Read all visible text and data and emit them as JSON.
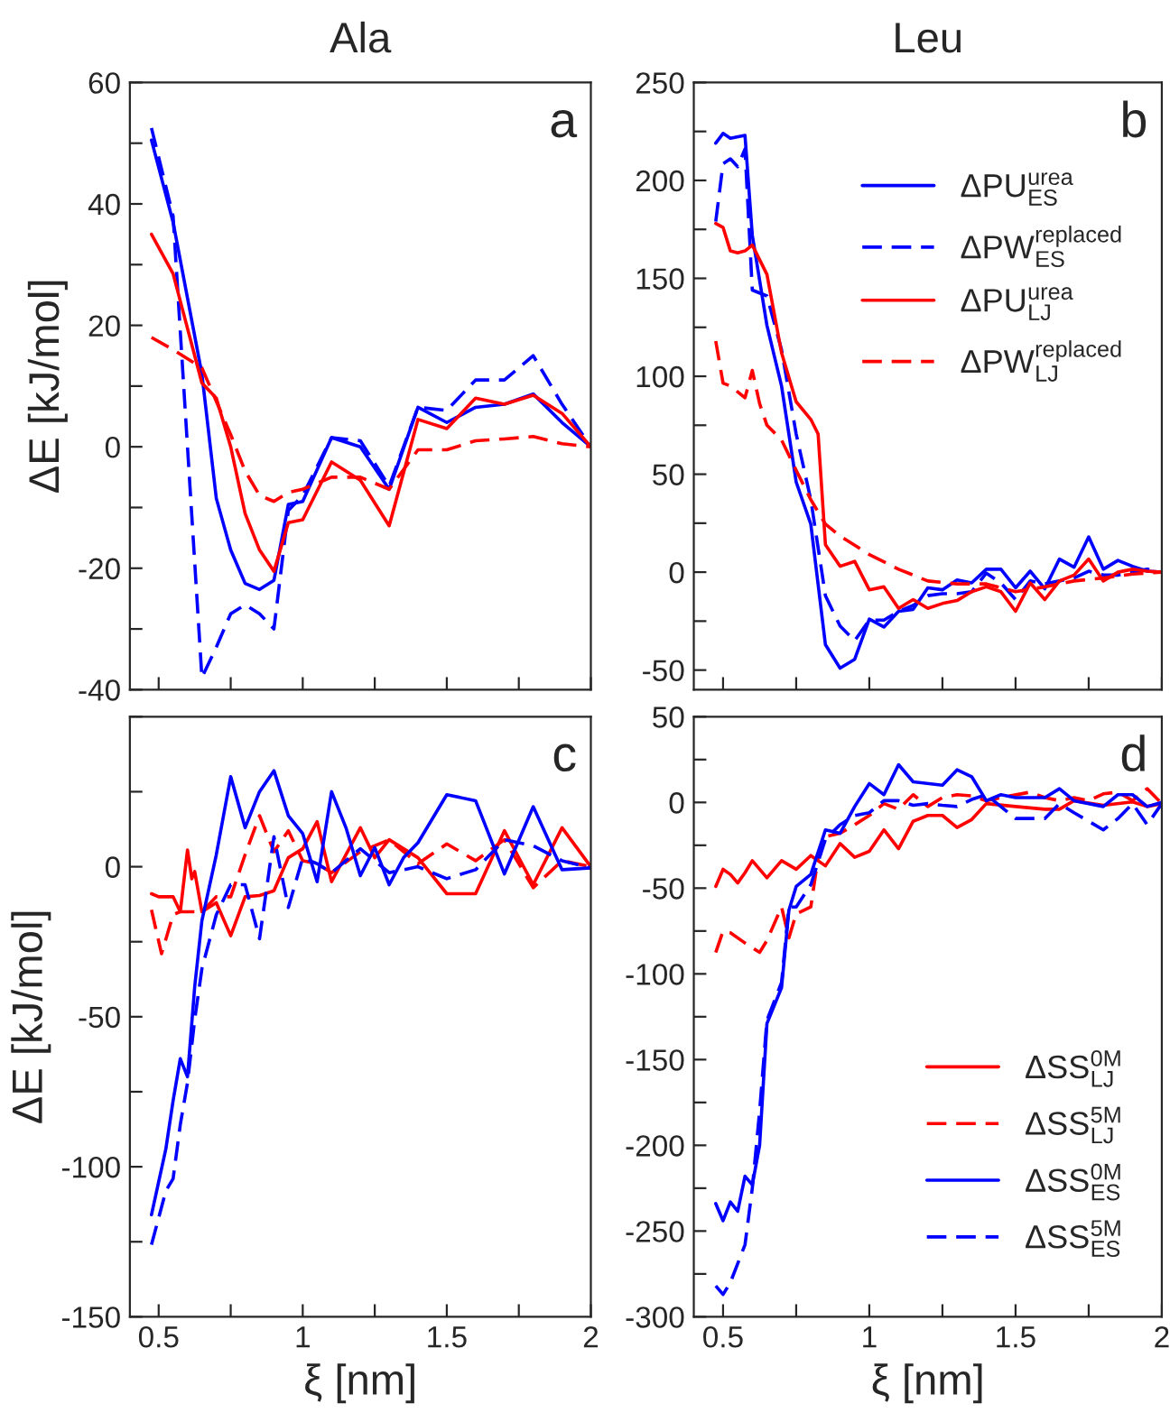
{
  "chart_data": [
    {
      "type": "line",
      "title": "Ala",
      "ylabel": "ΔE [kJ/mol]",
      "annotations": [
        "a"
      ],
      "tick_labels": "y",
      "grid": false,
      "legend": false,
      "xlim": [
        0.4,
        2
      ],
      "xticks": [
        0.5,
        {
          "value": 0.75,
          "label": null
        },
        1,
        {
          "value": 1.25,
          "label": null
        },
        1.5,
        {
          "value": 1.75,
          "label": null
        },
        2
      ],
      "ylim": [
        -40,
        60
      ],
      "yticks": [
        -40,
        {
          "value": -30,
          "label": null
        },
        -20,
        {
          "value": -10,
          "label": null
        },
        0,
        {
          "value": 10,
          "label": null
        },
        20,
        {
          "value": 30,
          "label": null
        },
        40,
        {
          "value": 50,
          "label": null
        },
        60
      ],
      "series": [
        {
          "color": "#0000ff",
          "line_style": "solid",
          "x": [
            0.475,
            0.55,
            0.65,
            0.7,
            0.75,
            0.8,
            0.85,
            0.9,
            0.95,
            1.0,
            1.1,
            1.2,
            1.3,
            1.4,
            1.5,
            1.6,
            1.7,
            1.8,
            1.9,
            2.0
          ],
          "values": [
            50.5,
            37,
            12,
            -8.5,
            -17,
            -22.5,
            -23.5,
            -22,
            -9.5,
            -9,
            1.5,
            0,
            -7,
            6.5,
            4,
            6.5,
            7,
            8.7,
            4,
            0
          ]
        },
        {
          "color": "#0000ff",
          "line_style": "dashed",
          "x": [
            0.475,
            0.55,
            0.6,
            0.65,
            0.7,
            0.75,
            0.8,
            0.85,
            0.9,
            0.95,
            1.0,
            1.1,
            1.2,
            1.3,
            1.4,
            1.5,
            1.6,
            1.7,
            1.8,
            1.9,
            2.0
          ],
          "values": [
            52.5,
            38,
            0,
            -38,
            -33,
            -27.5,
            -26,
            -27.5,
            -30,
            -10.5,
            -8,
            1.5,
            1,
            -6.5,
            6.5,
            6,
            11,
            11,
            15,
            7,
            0
          ]
        },
        {
          "color": "#ff0000",
          "line_style": "solid",
          "x": [
            0.475,
            0.55,
            0.65,
            0.7,
            0.75,
            0.8,
            0.85,
            0.9,
            0.95,
            1.0,
            1.1,
            1.2,
            1.3,
            1.4,
            1.5,
            1.6,
            1.7,
            1.8,
            1.9,
            2.0
          ],
          "values": [
            35,
            28.5,
            10.5,
            8,
            0,
            -11,
            -17,
            -20.5,
            -12.5,
            -12,
            -2.5,
            -5.5,
            -13,
            4.5,
            3,
            8,
            7,
            8.5,
            5.5,
            0
          ]
        },
        {
          "color": "#ff0000",
          "line_style": "dashed",
          "x": [
            0.475,
            0.55,
            0.65,
            0.7,
            0.75,
            0.8,
            0.85,
            0.9,
            0.95,
            1.0,
            1.1,
            1.2,
            1.3,
            1.4,
            1.5,
            1.6,
            1.7,
            1.8,
            1.9,
            2.0
          ],
          "values": [
            18,
            16,
            13,
            7.5,
            2,
            -4,
            -8,
            -9,
            -7.5,
            -7,
            -5,
            -5,
            -7,
            -0.5,
            -0.5,
            1,
            1.3,
            1.7,
            0.5,
            0
          ]
        }
      ]
    },
    {
      "type": "line",
      "title": "Leu",
      "annotations": [
        "b"
      ],
      "tick_labels": "y",
      "grid": false,
      "legend": "top right",
      "xlim": [
        0.4,
        2
      ],
      "xticks": [
        0.5,
        {
          "value": 0.75,
          "label": null
        },
        1,
        {
          "value": 1.25,
          "label": null
        },
        1.5,
        {
          "value": 1.75,
          "label": null
        },
        2
      ],
      "ylim": [
        -60,
        250
      ],
      "yticks": [
        -50,
        {
          "value": -25,
          "label": null
        },
        0,
        {
          "value": 25,
          "label": null
        },
        50,
        {
          "value": 75,
          "label": null
        },
        100,
        {
          "value": 125,
          "label": null
        },
        150,
        {
          "value": 175,
          "label": null
        },
        200,
        {
          "value": 225,
          "label": null
        },
        250
      ],
      "series": [
        {
          "name": "ΔPU$^{urea}$$_{ES}$",
          "color": "#0000ff",
          "line_style": "solid",
          "x": [
            0.475,
            0.5,
            0.525,
            0.575,
            0.6,
            0.65,
            0.7,
            0.75,
            0.8,
            0.85,
            0.9,
            0.95,
            1.0,
            1.05,
            1.1,
            1.15,
            1.2,
            1.25,
            1.3,
            1.35,
            1.4,
            1.45,
            1.5,
            1.55,
            1.6,
            1.65,
            1.7,
            1.75,
            1.8,
            1.85,
            1.9,
            1.95,
            2.0
          ],
          "values": [
            219,
            224,
            221.5,
            223,
            172,
            126,
            95,
            46,
            24.5,
            -37,
            -49,
            -44.5,
            -24,
            -28,
            -20,
            -19,
            -8,
            -9,
            -4,
            -5.5,
            1.5,
            1.5,
            -8,
            0.5,
            -8.5,
            6.7,
            2.5,
            18,
            1.5,
            6,
            3,
            0.5,
            0
          ]
        },
        {
          "name": "ΔPW$^{replaced}$$_{ES}$",
          "color": "#0000ff",
          "line_style": "dashed",
          "x": [
            0.475,
            0.5,
            0.525,
            0.55,
            0.575,
            0.6,
            0.65,
            0.7,
            0.75,
            0.8,
            0.85,
            0.9,
            0.95,
            1.0,
            1.05,
            1.1,
            1.15,
            1.2,
            1.25,
            1.3,
            1.35,
            1.4,
            1.45,
            1.5,
            1.55,
            1.6,
            1.65,
            1.7,
            1.75,
            1.8,
            1.85,
            1.9,
            1.95,
            2.0
          ],
          "values": [
            179,
            208.5,
            211,
            207,
            216,
            144,
            141,
            113.5,
            70.5,
            37,
            -12,
            -27.5,
            -35,
            -24.5,
            -24.5,
            -20,
            -17,
            -12,
            -11,
            -11,
            -10,
            -0.5,
            -5.5,
            -14,
            -4.5,
            -6,
            -4.5,
            -3,
            0.5,
            -1.5,
            -1.5,
            0,
            1.5,
            0
          ]
        },
        {
          "name": "ΔPU$^{urea}$$_{LJ}$",
          "color": "#ff0000",
          "line_style": "solid",
          "x": [
            0.475,
            0.5,
            0.525,
            0.55,
            0.575,
            0.6,
            0.65,
            0.7,
            0.75,
            0.8,
            0.825,
            0.85,
            0.9,
            0.95,
            1.0,
            1.05,
            1.1,
            1.15,
            1.2,
            1.25,
            1.3,
            1.35,
            1.4,
            1.45,
            1.5,
            1.55,
            1.6,
            1.65,
            1.7,
            1.75,
            1.8,
            1.85,
            1.9,
            1.95,
            2.0
          ],
          "values": [
            178,
            176,
            164,
            163,
            164,
            167,
            152,
            112,
            87,
            78,
            70.5,
            14,
            3,
            5.5,
            -9,
            -7.5,
            -18.5,
            -14,
            -18.5,
            -16,
            -14.5,
            -10,
            -7.5,
            -10,
            -20,
            -5.5,
            -14,
            -4.5,
            -1.5,
            6.7,
            -4.5,
            0,
            1.5,
            0.5,
            0
          ]
        },
        {
          "name": "ΔPW$^{replaced}$$_{LJ}$",
          "color": "#ff0000",
          "line_style": "dashed",
          "x": [
            0.475,
            0.5,
            0.525,
            0.575,
            0.6,
            0.625,
            0.65,
            0.7,
            0.75,
            0.8,
            0.85,
            0.9,
            1.0,
            1.1,
            1.2,
            1.3,
            1.4,
            1.5,
            1.6,
            1.7,
            1.8,
            1.9,
            2.0
          ],
          "values": [
            118,
            96.5,
            95,
            89,
            103,
            86,
            75,
            67.5,
            52,
            37,
            24.5,
            18.5,
            9,
            1.5,
            -4.5,
            -6,
            -6,
            -10,
            -7.5,
            -4.5,
            -3,
            -1,
            0
          ]
        }
      ]
    },
    {
      "type": "line",
      "ylabel": "ΔE [kJ/mol]",
      "xlabel": "ξ [nm]",
      "annotations": [
        "c"
      ],
      "grid": false,
      "legend": false,
      "xlim": [
        0.4,
        2
      ],
      "xticks": [
        0.5,
        {
          "value": 0.75,
          "label": null
        },
        1,
        {
          "value": 1.25,
          "label": null
        },
        1.5,
        {
          "value": 1.75,
          "label": null
        },
        2
      ],
      "ylim": [
        -150,
        50
      ],
      "yticks": [
        -150,
        {
          "value": -125,
          "label": null
        },
        -100,
        {
          "value": -75,
          "label": null
        },
        -50,
        {
          "value": -25,
          "label": null
        },
        0,
        {
          "value": 25,
          "label": null
        },
        {
          "value": 50,
          "label": null
        }
      ],
      "series": [
        {
          "color": "#ff0000",
          "line_style": "solid",
          "x": [
            0.475,
            0.5,
            0.55,
            0.575,
            0.6,
            0.615,
            0.625,
            0.65,
            0.7,
            0.75,
            0.8,
            0.85,
            0.9,
            0.95,
            1.0,
            1.05,
            1.1,
            1.2,
            1.25,
            1.3,
            1.4,
            1.5,
            1.6,
            1.7,
            1.8,
            1.9,
            2.0
          ],
          "values": [
            -9,
            -10,
            -10,
            -15,
            5.6,
            -4,
            -1.6,
            -15,
            -12,
            -23,
            -10,
            -9.6,
            -8,
            3,
            6,
            15,
            -5,
            13,
            3,
            9,
            3,
            -9,
            -9,
            12,
            -6,
            13,
            0
          ]
        },
        {
          "color": "#ff0000",
          "line_style": "dashed",
          "x": [
            0.475,
            0.51,
            0.55,
            0.575,
            0.6,
            0.65,
            0.7,
            0.75,
            0.8,
            0.85,
            0.9,
            0.95,
            1.0,
            1.05,
            1.1,
            1.2,
            1.3,
            1.4,
            1.5,
            1.6,
            1.7,
            1.8,
            1.9,
            2.0
          ],
          "values": [
            -14.4,
            -29,
            -16,
            -15,
            -15,
            -15,
            -10,
            -10,
            4,
            17,
            5,
            12,
            2,
            1,
            -2,
            5,
            9,
            1,
            7.6,
            2,
            9,
            -7,
            2,
            0
          ]
        },
        {
          "color": "#0000ff",
          "line_style": "solid",
          "x": [
            0.475,
            0.525,
            0.55,
            0.575,
            0.6,
            0.625,
            0.65,
            0.7,
            0.75,
            0.8,
            0.85,
            0.9,
            0.95,
            1.0,
            1.05,
            1.1,
            1.15,
            1.2,
            1.25,
            1.3,
            1.35,
            1.4,
            1.5,
            1.6,
            1.7,
            1.8,
            1.9,
            2.0
          ],
          "values": [
            -116,
            -94,
            -78,
            -64,
            -70,
            -40,
            -18,
            4,
            30,
            13,
            25,
            32,
            17,
            11,
            -5,
            25,
            13,
            -3,
            6.4,
            -6,
            3,
            8,
            24,
            22,
            -2.4,
            20,
            -1,
            -0.4
          ]
        },
        {
          "color": "#0000ff",
          "line_style": "dashed",
          "x": [
            0.475,
            0.525,
            0.55,
            0.575,
            0.6,
            0.625,
            0.65,
            0.7,
            0.75,
            0.8,
            0.85,
            0.9,
            0.95,
            1.0,
            1.05,
            1.1,
            1.2,
            1.3,
            1.4,
            1.5,
            1.6,
            1.7,
            1.8,
            1.9,
            2.0
          ],
          "values": [
            -126,
            -108,
            -104,
            -86,
            -72,
            -51,
            -34,
            -16,
            -6,
            -6,
            -24,
            10,
            -13.6,
            3,
            1,
            -2,
            6,
            -2,
            0,
            -4,
            -1,
            9,
            7,
            2,
            -0.4
          ]
        }
      ]
    },
    {
      "type": "line",
      "xlabel": "ξ [nm]",
      "annotations": [
        "d"
      ],
      "grid": false,
      "legend": "bottom right",
      "xlim": [
        0.4,
        2
      ],
      "xticks": [
        0.5,
        {
          "value": 0.75,
          "label": null
        },
        1,
        {
          "value": 1.25,
          "label": null
        },
        1.5,
        {
          "value": 1.75,
          "label": null
        },
        2
      ],
      "ylim": [
        -300,
        50
      ],
      "yticks": [
        -300,
        {
          "value": -275,
          "label": null
        },
        -250,
        {
          "value": -225,
          "label": null
        },
        -200,
        {
          "value": -175,
          "label": null
        },
        -150,
        {
          "value": -125,
          "label": null
        },
        -100,
        {
          "value": -75,
          "label": null
        },
        -50,
        {
          "value": -25,
          "label": null
        },
        0,
        {
          "value": 25,
          "label": null
        },
        50
      ],
      "series": [
        {
          "name": "ΔSS$^{0M}$$_{LJ}$",
          "color": "#ff0000",
          "line_style": "solid",
          "x": [
            0.475,
            0.5,
            0.525,
            0.55,
            0.575,
            0.6,
            0.65,
            0.7,
            0.75,
            0.8,
            0.85,
            0.9,
            0.95,
            1.0,
            1.05,
            1.1,
            1.15,
            1.2,
            1.25,
            1.3,
            1.35,
            1.4,
            1.5,
            1.6,
            1.65,
            1.7,
            1.8,
            1.9,
            1.95,
            2.0
          ],
          "values": [
            -49,
            -39,
            -42,
            -47,
            -41,
            -34,
            -44,
            -34,
            -39,
            -31,
            -37,
            -24,
            -32,
            -28.5,
            -16,
            -27,
            -11,
            -7.6,
            -7.6,
            -14.6,
            -10,
            -0.7,
            -2.4,
            -4,
            -4,
            1,
            -1.7,
            0.3,
            -2.4,
            -0.7
          ]
        },
        {
          "name": "ΔSS$^{5M}$$_{LJ}$",
          "color": "#ff0000",
          "line_style": "dashed",
          "x": [
            0.475,
            0.5,
            0.525,
            0.575,
            0.625,
            0.65,
            0.7,
            0.725,
            0.75,
            0.8,
            0.825,
            0.85,
            0.9,
            0.95,
            1.0,
            1.05,
            1.1,
            1.15,
            1.2,
            1.25,
            1.3,
            1.35,
            1.4,
            1.45,
            1.55,
            1.6,
            1.65,
            1.7,
            1.75,
            1.8,
            1.85,
            1.9,
            1.95,
            2.0
          ],
          "values": [
            -87.5,
            -75,
            -76,
            -82,
            -87.5,
            -80.5,
            -61,
            -79,
            -65,
            -61,
            -32,
            -20,
            -18,
            -13,
            -7.6,
            -0.7,
            -4,
            4.5,
            -2.4,
            2.8,
            4.5,
            3.8,
            1,
            2.8,
            6,
            2.8,
            1,
            2.8,
            1,
            5,
            6,
            1,
            8,
            -0.7
          ]
        },
        {
          "name": "ΔSS$^{0M}$$_{ES}$",
          "color": "#0000ff",
          "line_style": "solid",
          "x": [
            0.475,
            0.5,
            0.525,
            0.55,
            0.575,
            0.6,
            0.625,
            0.65,
            0.7,
            0.725,
            0.75,
            0.8,
            0.85,
            0.9,
            0.95,
            1.0,
            1.05,
            1.1,
            1.15,
            1.25,
            1.3,
            1.35,
            1.4,
            1.45,
            1.5,
            1.55,
            1.6,
            1.65,
            1.7,
            1.8,
            1.85,
            1.9,
            1.95,
            2.0
          ],
          "values": [
            -234,
            -244,
            -233,
            -238.5,
            -218,
            -223,
            -200,
            -129,
            -108,
            -63,
            -49,
            -42,
            -16,
            -18,
            -2.4,
            11,
            4.5,
            22,
            12,
            10,
            19,
            15,
            1,
            4.5,
            2.8,
            2.8,
            2.8,
            8,
            1,
            -2.4,
            4.5,
            4.5,
            -2.4,
            0
          ]
        },
        {
          "name": "ΔSS$^{5M}$$_{ES}$",
          "color": "#0000ff",
          "line_style": "dashed",
          "x": [
            0.475,
            0.5,
            0.525,
            0.575,
            0.6,
            0.625,
            0.65,
            0.7,
            0.725,
            0.75,
            0.8,
            0.85,
            0.9,
            0.95,
            1.0,
            1.05,
            1.1,
            1.15,
            1.2,
            1.25,
            1.3,
            1.35,
            1.4,
            1.5,
            1.6,
            1.65,
            1.7,
            1.8,
            1.85,
            1.9,
            1.95,
            2.0
          ],
          "values": [
            -282,
            -287,
            -280,
            -258,
            -225,
            -180,
            -127,
            -105,
            -61,
            -61,
            -48,
            -21.5,
            -13,
            -7.6,
            -6,
            1,
            1,
            -1.7,
            -0.7,
            -1.7,
            -2.4,
            1.7,
            4.5,
            -9.4,
            -9.4,
            -0.7,
            -6,
            -16,
            -9.4,
            -0.7,
            -13,
            -0.7
          ]
        }
      ]
    }
  ]
}
